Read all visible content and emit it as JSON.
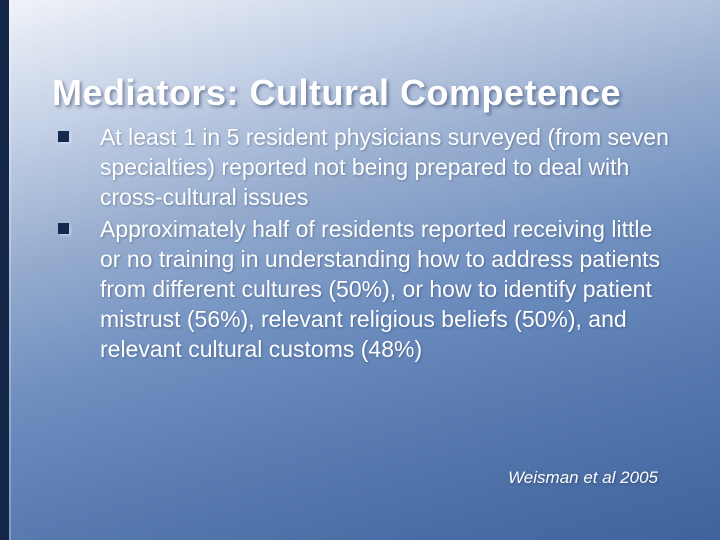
{
  "slide": {
    "title": "Mediators: Cultural Competence",
    "bullets": [
      "At least 1 in 5 resident physicians surveyed (from seven specialties) reported not being prepared to deal with cross-cultural issues",
      "Approximately half of residents reported receiving little or no training in understanding how to address patients from different cultures (50%), or how to identify patient mistrust (56%), relevant religious beliefs (50%), and relevant cultural customs (48%)"
    ],
    "citation": "Weisman et al 2005"
  },
  "colors": {
    "background_top": "#f0f3f9",
    "background_bottom": "#40639c",
    "left_bar": "#142647",
    "title_text": "#ffffff",
    "body_text": "#ffffff",
    "bullet_square": "#14294e"
  }
}
